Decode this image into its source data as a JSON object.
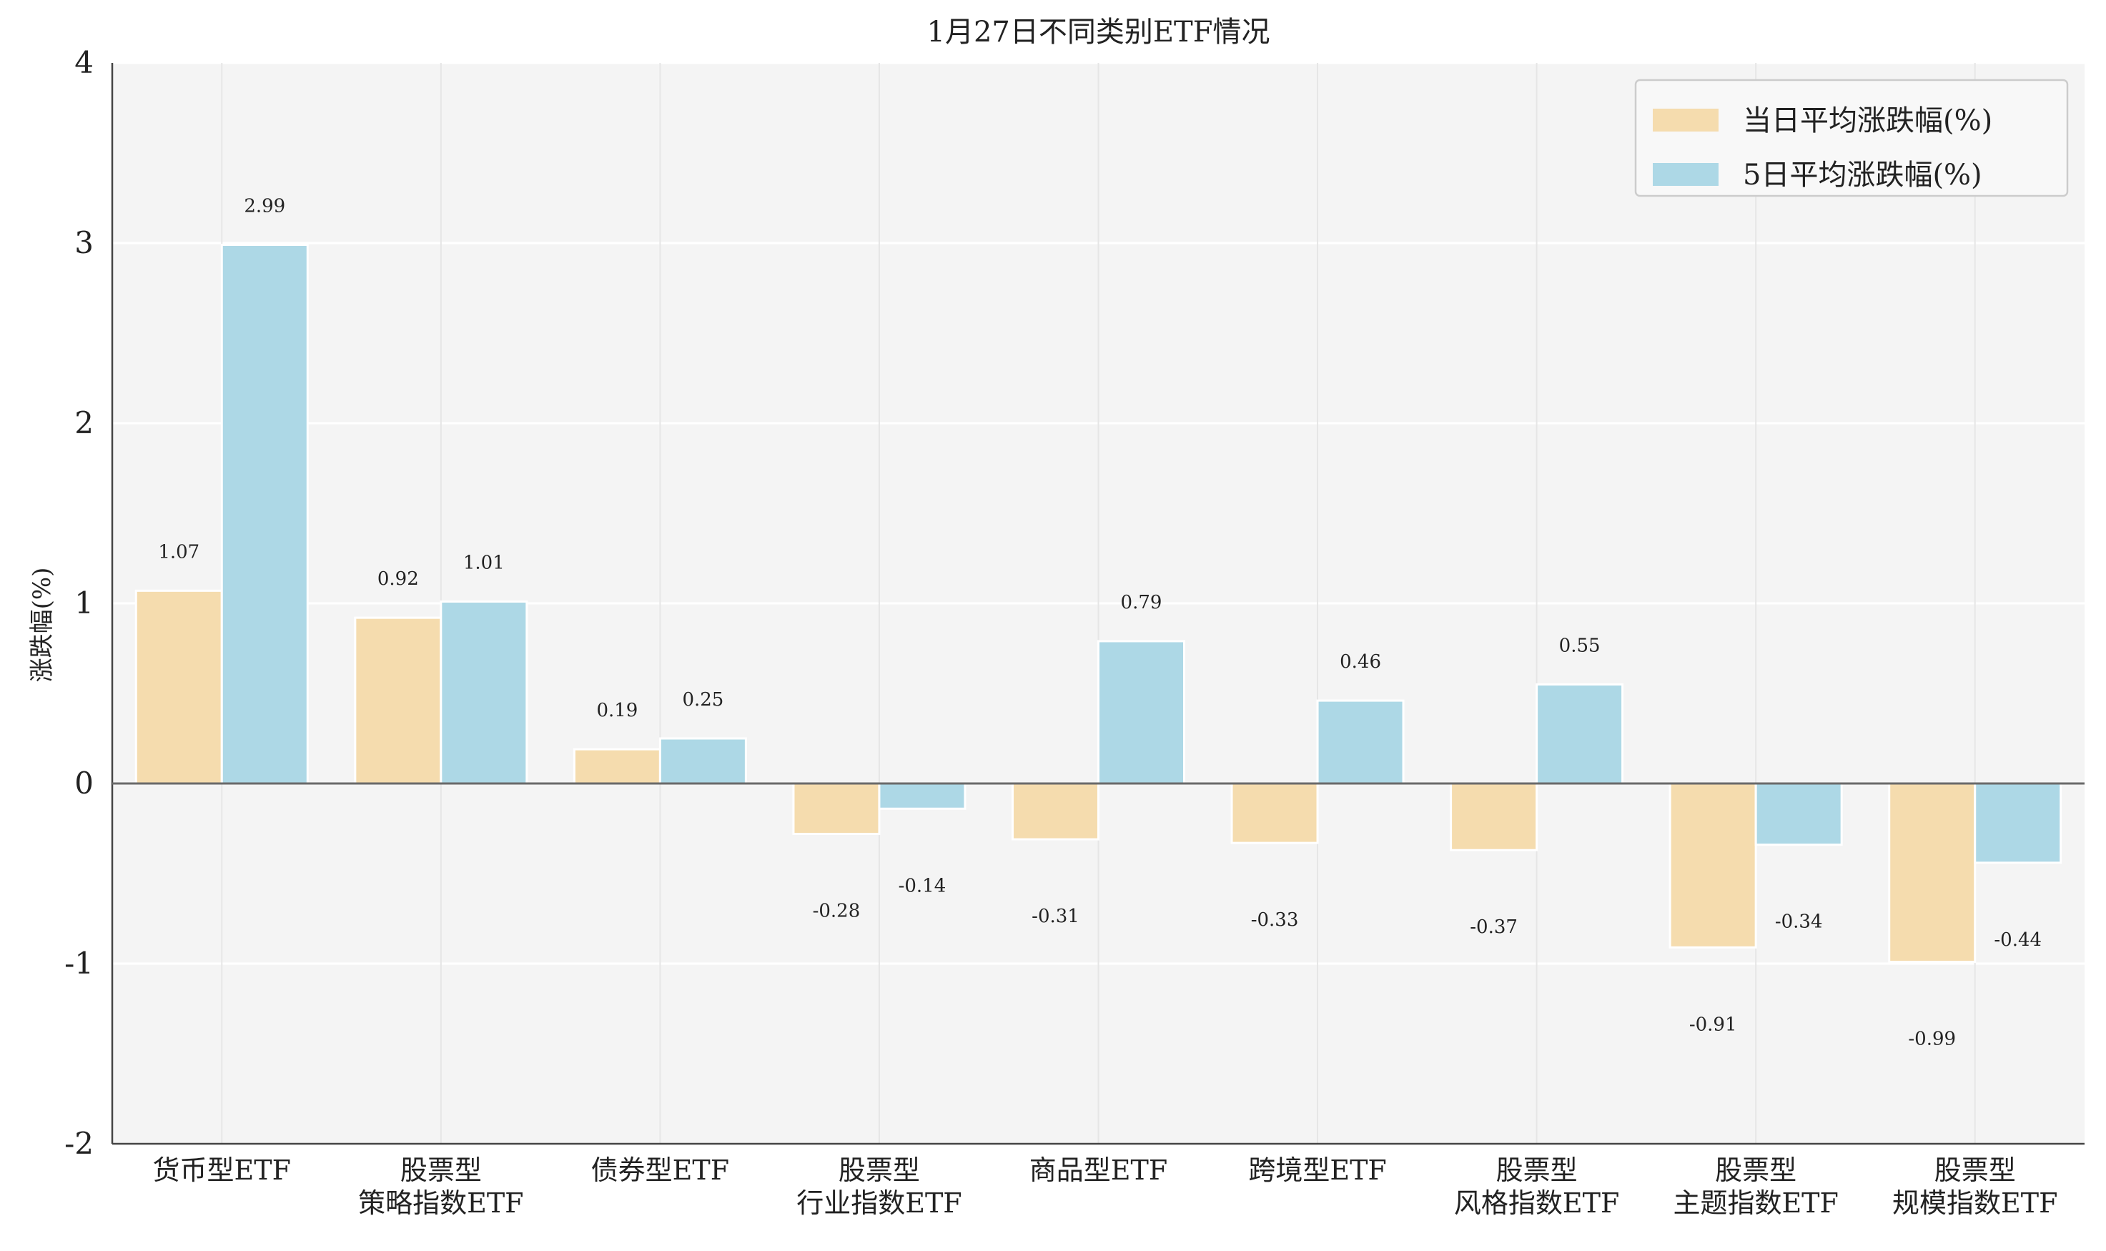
{
  "chart_data": {
    "type": "bar",
    "title": "1月27日不同类别ETF情况",
    "xlabel": "",
    "ylabel": "涨跌幅(%)",
    "ylim": [
      -2,
      4
    ],
    "yticks": [
      -2,
      -1,
      0,
      1,
      2,
      3,
      4
    ],
    "grid": true,
    "legend_position": "top-right",
    "categories": [
      [
        "货币型ETF"
      ],
      [
        "股票型",
        "策略指数ETF"
      ],
      [
        "债券型ETF"
      ],
      [
        "股票型",
        "行业指数ETF"
      ],
      [
        "商品型ETF"
      ],
      [
        "跨境型ETF"
      ],
      [
        "股票型",
        "风格指数ETF"
      ],
      [
        "股票型",
        "主题指数ETF"
      ],
      [
        "股票型",
        "规模指数ETF"
      ]
    ],
    "series": [
      {
        "name": "当日平均涨跌幅(%)",
        "color": "#f5dcae",
        "values": [
          1.07,
          0.92,
          0.19,
          -0.28,
          -0.31,
          -0.33,
          -0.37,
          -0.91,
          -0.99
        ]
      },
      {
        "name": "5日平均涨跌幅(%)",
        "color": "#add8e6",
        "values": [
          2.99,
          1.01,
          0.25,
          -0.14,
          0.79,
          0.46,
          0.55,
          -0.34,
          -0.44
        ]
      }
    ]
  }
}
